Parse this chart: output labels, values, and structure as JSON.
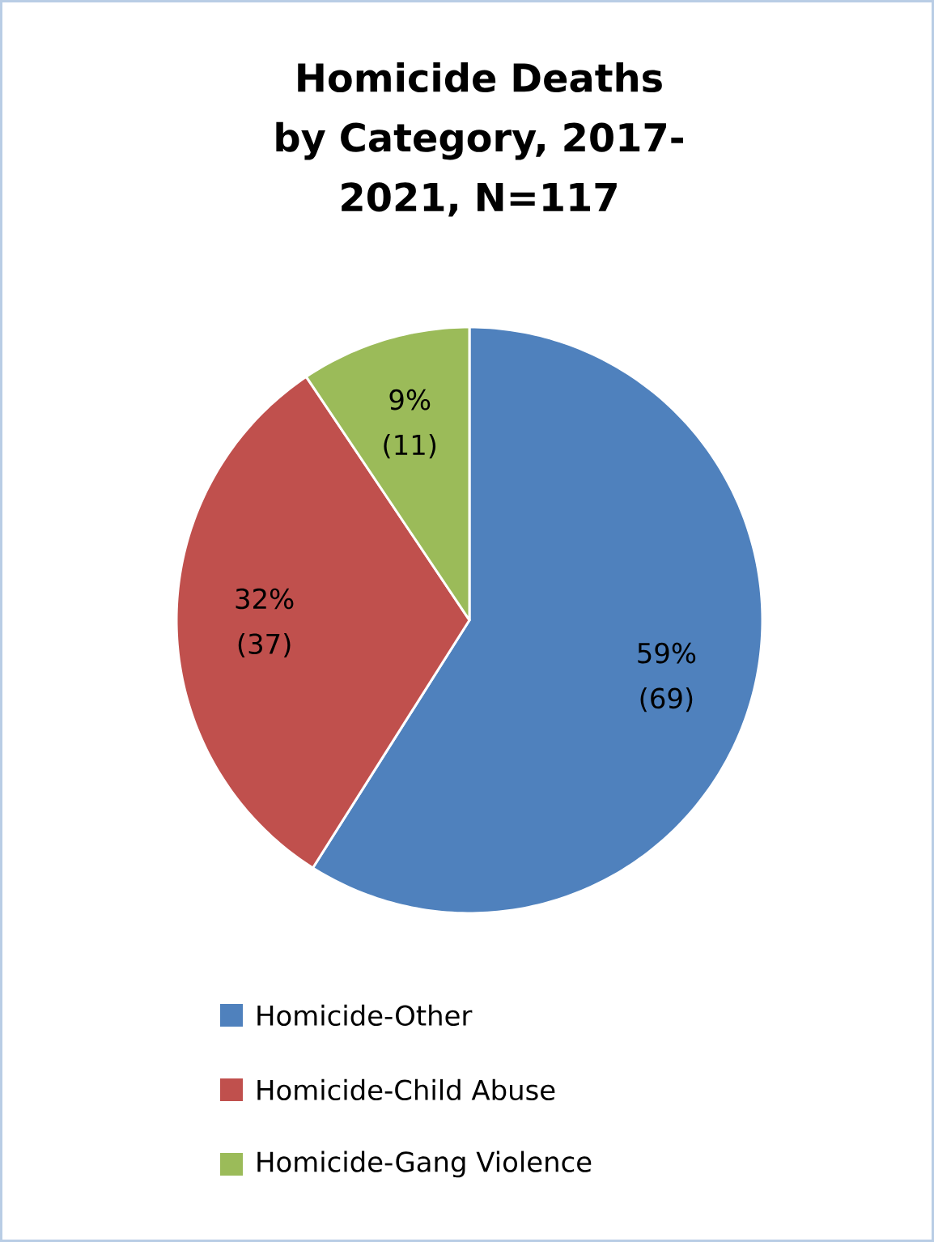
{
  "chart_data": {
    "type": "pie",
    "title": "Homicide Deaths by Category, 2017-2021, N=117",
    "categories": [
      "Homicide-Other",
      "Homicide-Child Abuse",
      "Homicide-Gang Violence"
    ],
    "values": [
      69,
      37,
      11
    ],
    "colors": [
      "#4f81bd",
      "#c0504d",
      "#9bbb59"
    ],
    "value_labels": [
      "59% (69)",
      "32% (37)",
      "9% (11)"
    ],
    "legend": "bottom"
  }
}
